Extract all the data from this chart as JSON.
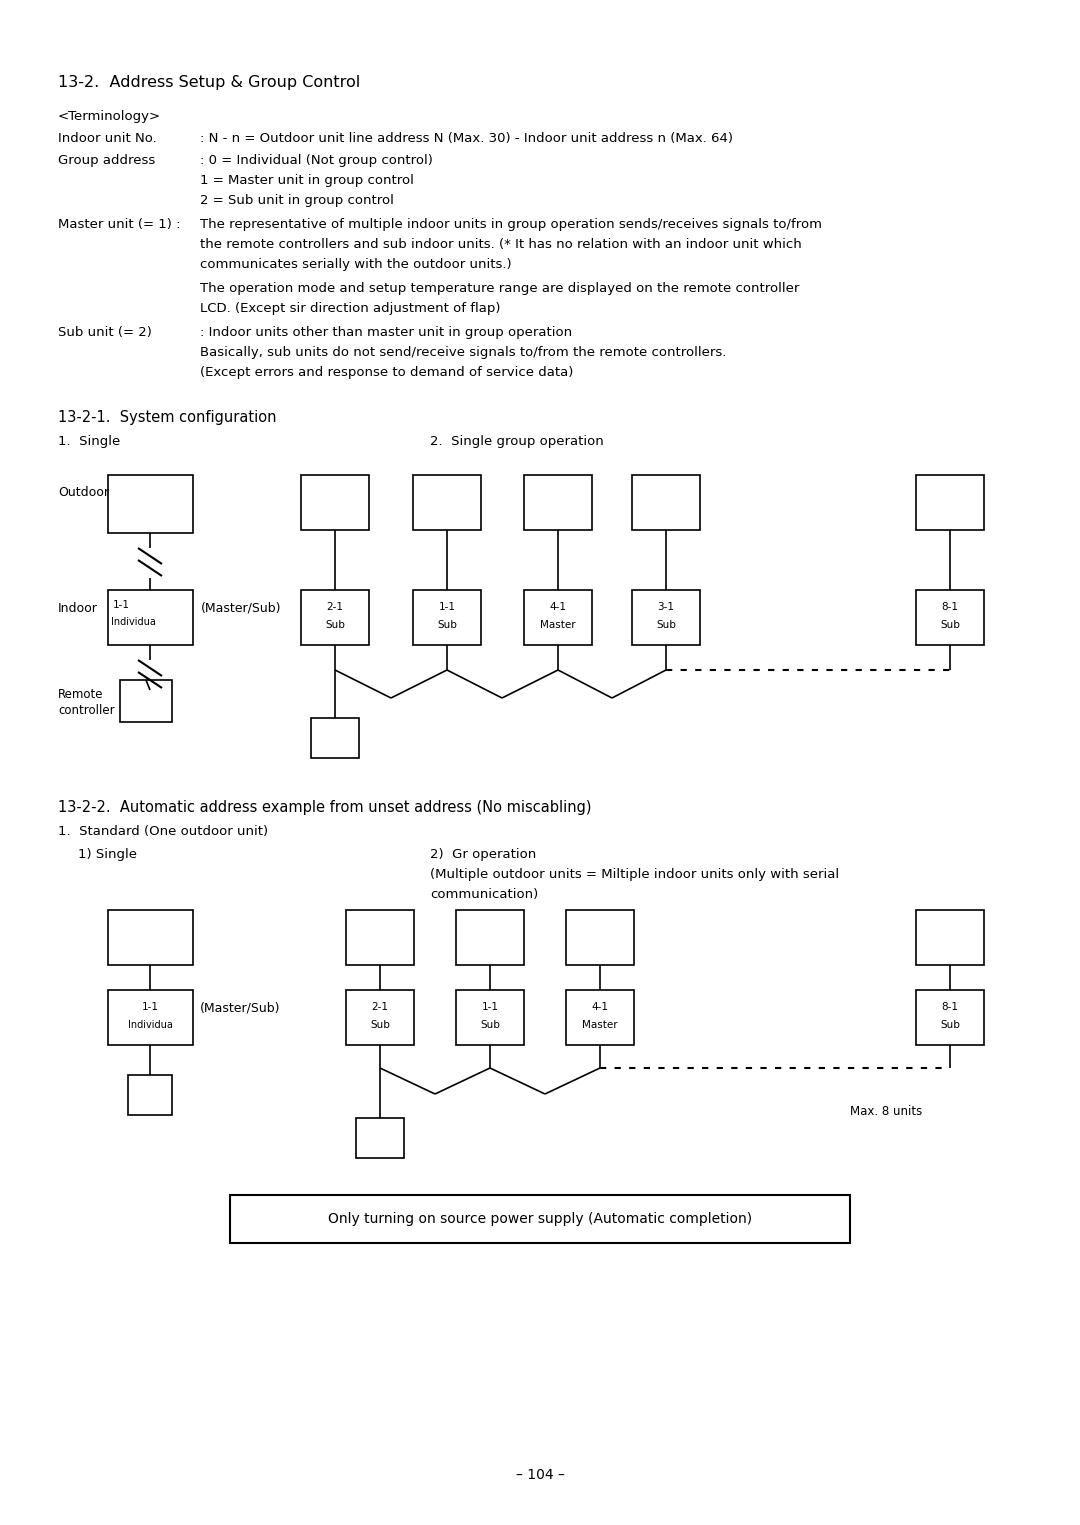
{
  "background_color": "#ffffff",
  "title": "13-2.  Address Setup & Group Control",
  "terminology_label": "<Terminology>",
  "indoor_no_label": "Indoor unit No.",
  "indoor_no_text": ": N - n = Outdoor unit line address N (Max. 30) - Indoor unit address n (Max. 64)",
  "group_addr_label": "Group address",
  "group_addr_line1": ": 0 = Individual (Not group control)",
  "group_addr_line2": "1 = Master unit in group control",
  "group_addr_line3": "2 = Sub unit in group control",
  "master_label": "Master unit (= 1) :",
  "master_text1": "The representative of multiple indoor units in group operation sends/receives signals to/from",
  "master_text2": "the remote controllers and sub indoor units. (* It has no relation with an indoor unit which",
  "master_text3": "communicates serially with the outdoor units.)",
  "master_text4": "The operation mode and setup temperature range are displayed on the remote controller",
  "master_text5": "LCD. (Except sir direction adjustment of flap)",
  "sub_label": "Sub unit (= 2)",
  "sub_text1": ": Indoor units other than master unit in group operation",
  "sub_text2": "Basically, sub units do not send/receive signals to/from the remote controllers.",
  "sub_text3": "(Except errors and response to demand of service data)",
  "section1_title": "13-2-1.  System configuration",
  "single_label": "1.  Single",
  "group_op_label": "2.  Single group operation",
  "section2_title": "13-2-2.  Automatic address example from unset address (No miscabling)",
  "standard_label": "1.  Standard (One outdoor unit)",
  "single1_label": "1) Single",
  "gr_op_label": "2)  Gr operation",
  "gr_op_text1": "(Multiple outdoor units = Miltiple indoor units only with serial",
  "gr_op_text2": "communication)",
  "max8_label": "Max. 8 units",
  "bottom_box_text": "Only turning on source power supply (Automatic completion)",
  "page_number": "– 104 –",
  "outdoor_label": "Outdoor",
  "indoor_label": "Indoor",
  "remote_label1": "Remote",
  "remote_label2": "controller",
  "master_sub_label": "(Master/Sub)"
}
